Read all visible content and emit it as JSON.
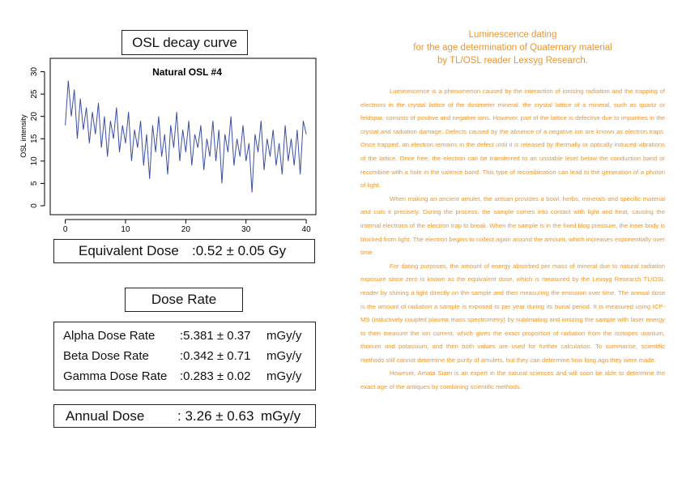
{
  "left": {
    "osl_heading": "OSL decay curve",
    "equivalent_dose": {
      "label": "Equivalent Dose",
      "value": ":0.52 ± 0.05 Gy"
    },
    "dose_rate_heading": "Dose Rate",
    "rates": [
      {
        "label": "Alpha Dose Rate",
        "value": ":5.381 ± 0.37",
        "unit": "mGy/y"
      },
      {
        "label": "Beta Dose Rate",
        "value": ":0.342 ± 0.71",
        "unit": "mGy/y"
      },
      {
        "label": "Gamma Dose Rate",
        "value": ":0.283 ± 0.02",
        "unit": "mGy/y"
      }
    ],
    "annual_dose": {
      "label": "Annual Dose",
      "value": ": 3.26 ± 0.63",
      "unit": "mGy/y"
    }
  },
  "article": {
    "heading": [
      "Luminescence dating",
      "for the age determination of Quaternary material",
      "by TL/OSL reader Lexsyg Research."
    ],
    "paragraphs": [
      "Luminescence is a phenomenon caused by the interaction of ionising radiation and the trapping of electrons in the crystal lattice of the dosimeter mineral. the crystal lattice of a mineral, such as quartz or feldspar, consists of positive and negative ions. However, part of the lattice is defective due to impurities in the crystal and radiation damage. Defects caused by the absence of a negative ion are known as electron traps. Once trapped, an electron remains in the defect until it is released by thermally or optically induced vibrations of the lattice. Once free, the electron can be transferred to an unstable level below the conduction band or recombine with a hole in the valence band. This type of recombination can lead to the generation of a photon of light.",
      "When making an ancient amulet, the artisan provides a bowl, herbs, minerals and specific material and cuts it precisely. During the process, the sample comes into contact with light and heat, causing the internal electrons of the electron trap to break. When the sample is in the fixed blog pressure, the inner body is blocked from light. The electron begins to collect again around the amount, which increases exponentially over time.",
      "For dating purposes, the amount of energy absorbed per mass of mineral due to natural radiation exposure since zero is known as the equivalent dose, which is measured by the Lexsyg Research TL/OSL reader by shining a light directly on the sample and then measuring the emission over time. The annual dose is the amount of radiation a sample is exposed to per year during its burial period. It is measured using ICP-MS (inductively coupled plasma mass spectrometry) by sublimating and ionizing the sample with laser energy to then measure the ion current, which gives the exact proportion of radiation from the isotopes uranium, thorium and potassium, and then both values are used for further calculation. To summarise, scientific methods still cannot determine the purity of amulets, but they can determine how long ago they were made.",
      "However, Amata Siam is an expert in the natural sciences and will soon be able to determine the exact age of the antiques by combining scientific methods."
    ]
  },
  "chart_data": {
    "type": "line",
    "title": "Natural OSL #4",
    "y_label": "OSL intensity",
    "color": "#3a4fa0",
    "x": [
      0,
      0.5,
      1,
      1.5,
      2,
      2.5,
      3,
      3.5,
      4,
      4.5,
      5,
      5.5,
      6,
      6.5,
      7,
      7.5,
      8,
      8.5,
      9,
      9.5,
      10,
      10.5,
      11,
      11.5,
      12,
      12.5,
      13,
      13.5,
      14,
      14.5,
      15,
      15.5,
      16,
      16.5,
      17,
      17.5,
      18,
      18.5,
      19,
      19.5,
      20,
      20.5,
      21,
      21.5,
      22,
      22.5,
      23,
      23.5,
      24,
      24.5,
      25,
      25.5,
      26,
      26.5,
      27,
      27.5,
      28,
      28.5,
      29,
      29.5,
      30,
      30.5,
      31,
      31.5,
      32,
      32.5,
      33,
      33.5,
      34,
      34.5,
      35,
      35.5,
      36,
      36.5,
      37,
      37.5,
      38,
      38.5,
      39,
      39.5,
      40
    ],
    "values": [
      18,
      28,
      20,
      26,
      15,
      24,
      17,
      22,
      14,
      21,
      16,
      23,
      13,
      20,
      11,
      19,
      15,
      22,
      12,
      18,
      14,
      21,
      10,
      17,
      13,
      19,
      9,
      16,
      6,
      18,
      12,
      20,
      11,
      16,
      7,
      18,
      13,
      21,
      10,
      17,
      12,
      19,
      9,
      16,
      13,
      18,
      8,
      15,
      11,
      19,
      10,
      17,
      5,
      16,
      12,
      20,
      9,
      15,
      11,
      18,
      10,
      14,
      3,
      16,
      12,
      19,
      8,
      15,
      11,
      17,
      9,
      14,
      7,
      18,
      10,
      15,
      9,
      17,
      7,
      19,
      16
    ],
    "xlim": [
      -2.5,
      41.6
    ],
    "ylim": [
      -2,
      33
    ],
    "xticks": [
      0,
      10,
      20,
      30,
      40
    ],
    "yticks": [
      0,
      5,
      10,
      15,
      20,
      25,
      30
    ]
  }
}
